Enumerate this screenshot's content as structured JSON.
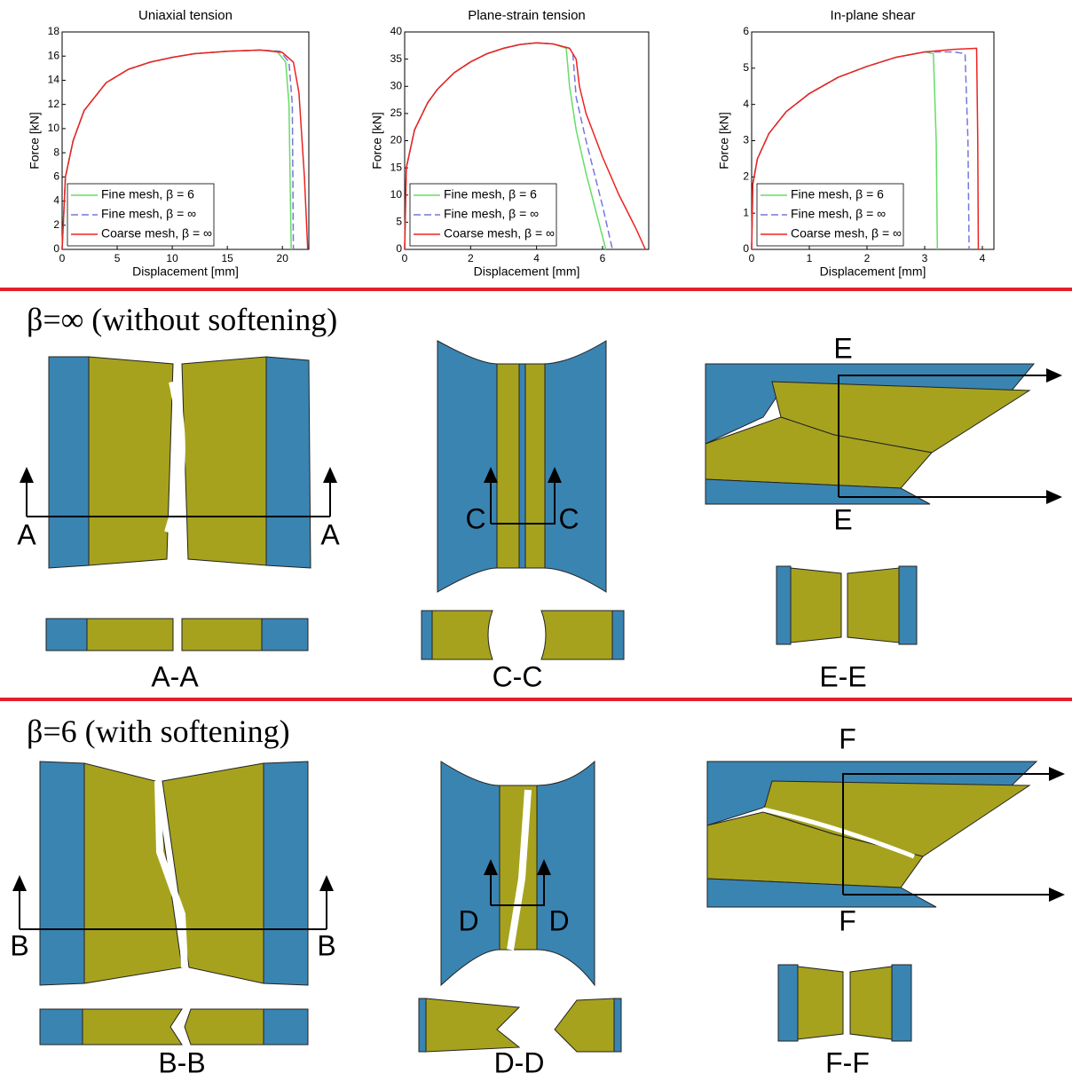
{
  "chart_data": [
    {
      "type": "line",
      "title": "Uniaxial tension",
      "xlabel": "Displacement [mm]",
      "ylabel": "Force [kN]",
      "xlim": [
        0,
        22.4
      ],
      "xticks": [
        0,
        5,
        10,
        15,
        20
      ],
      "ylim": [
        0,
        18
      ],
      "yticks": [
        0,
        2,
        4,
        6,
        8,
        10,
        12,
        14,
        16,
        18
      ],
      "legend": "lower left",
      "series": [
        {
          "name": "Fine mesh, β = 6",
          "color": "#66dd66",
          "line_style": "solid",
          "x": [
            0,
            0.3,
            1,
            2,
            4,
            6,
            8,
            10,
            12,
            15,
            18,
            19.5,
            20.3,
            20.6,
            20.8
          ],
          "values": [
            0,
            6,
            9,
            11.5,
            13.8,
            14.9,
            15.5,
            15.9,
            16.2,
            16.4,
            16.5,
            16.4,
            15.5,
            12,
            0
          ]
        },
        {
          "name": "Fine mesh, β = ∞",
          "color": "#7777dd",
          "line_style": "dashed",
          "x": [
            0,
            0.3,
            1,
            2,
            4,
            6,
            8,
            10,
            12,
            15,
            18,
            19.8,
            20.6,
            20.9,
            21.0
          ],
          "values": [
            0,
            6,
            9,
            11.5,
            13.8,
            14.9,
            15.5,
            15.9,
            16.2,
            16.4,
            16.5,
            16.4,
            15.5,
            12,
            0
          ]
        },
        {
          "name": "Coarse mesh, β = ∞",
          "color": "#ee2222",
          "line_style": "solid",
          "x": [
            0,
            0.3,
            1,
            2,
            4,
            6,
            8,
            10,
            12,
            15,
            18,
            20,
            21,
            21.5,
            22,
            22.3
          ],
          "values": [
            0,
            6,
            9,
            11.5,
            13.8,
            14.9,
            15.5,
            15.9,
            16.2,
            16.4,
            16.5,
            16.3,
            15.5,
            13,
            6,
            0
          ]
        }
      ]
    },
    {
      "type": "line",
      "title": "Plane-strain tension",
      "xlabel": "Displacement [mm]",
      "ylabel": "Force [kN]",
      "xlim": [
        0,
        7.4
      ],
      "xticks": [
        0,
        2,
        4,
        6
      ],
      "ylim": [
        0,
        40
      ],
      "yticks": [
        0,
        5,
        10,
        15,
        20,
        25,
        30,
        35,
        40
      ],
      "legend": "lower left",
      "series": [
        {
          "name": "Fine mesh, β = 6",
          "color": "#66dd66",
          "line_style": "solid",
          "x": [
            0,
            0.05,
            0.3,
            0.7,
            1,
            1.5,
            2,
            2.5,
            3,
            3.5,
            4,
            4.5,
            4.9,
            5.0,
            5.2,
            5.5,
            5.8,
            6.1
          ],
          "values": [
            0,
            15,
            22,
            27,
            29.5,
            32.5,
            34.5,
            36,
            37,
            37.7,
            38,
            37.8,
            37,
            30,
            22,
            14,
            7,
            0
          ]
        },
        {
          "name": "Fine mesh, β = ∞",
          "color": "#7777dd",
          "line_style": "dashed",
          "x": [
            0,
            0.05,
            0.3,
            0.7,
            1,
            1.5,
            2,
            2.5,
            3,
            3.5,
            4,
            4.5,
            5.0,
            5.1,
            5.2,
            5.5,
            6,
            6.3
          ],
          "values": [
            0,
            15,
            22,
            27,
            29.5,
            32.5,
            34.5,
            36,
            37,
            37.7,
            38,
            37.8,
            37,
            36,
            28,
            20,
            8,
            0
          ]
        },
        {
          "name": "Coarse mesh, β = ∞",
          "color": "#ee2222",
          "line_style": "solid",
          "x": [
            0,
            0.05,
            0.3,
            0.7,
            1,
            1.5,
            2,
            2.5,
            3,
            3.5,
            4,
            4.5,
            5,
            5.2,
            5.3,
            5.5,
            6,
            6.5,
            7,
            7.3
          ],
          "values": [
            0,
            15,
            22,
            27,
            29.5,
            32.5,
            34.5,
            36,
            37,
            37.7,
            38,
            37.8,
            37,
            35,
            30,
            25,
            17,
            10,
            4,
            0
          ]
        }
      ]
    },
    {
      "type": "line",
      "title": "In-plane shear",
      "xlabel": "Displacement [mm]",
      "ylabel": "Force [kN]",
      "xlim": [
        0,
        4.2
      ],
      "xticks": [
        0,
        1,
        2,
        3,
        4
      ],
      "ylim": [
        0,
        6
      ],
      "yticks": [
        0,
        1,
        2,
        3,
        4,
        5,
        6
      ],
      "legend": "lower left",
      "series": [
        {
          "name": "Fine mesh, β = 6",
          "color": "#66dd66",
          "line_style": "solid",
          "x": [
            0,
            0.02,
            0.1,
            0.3,
            0.6,
            1,
            1.5,
            2,
            2.5,
            3,
            3.15,
            3.2,
            3.22
          ],
          "values": [
            0,
            1.8,
            2.5,
            3.2,
            3.8,
            4.3,
            4.75,
            5.05,
            5.3,
            5.45,
            5.4,
            3,
            0
          ]
        },
        {
          "name": "Fine mesh, β = ∞",
          "color": "#7777dd",
          "line_style": "dashed",
          "x": [
            0,
            0.02,
            0.1,
            0.3,
            0.6,
            1,
            1.5,
            2,
            2.5,
            3,
            3.5,
            3.7,
            3.75,
            3.77
          ],
          "values": [
            0,
            1.8,
            2.5,
            3.2,
            3.8,
            4.3,
            4.75,
            5.05,
            5.3,
            5.45,
            5.45,
            5.4,
            3,
            0
          ]
        },
        {
          "name": "Coarse mesh, β = ∞",
          "color": "#ee2222",
          "line_style": "solid",
          "x": [
            0,
            0.02,
            0.1,
            0.3,
            0.6,
            1,
            1.5,
            2,
            2.5,
            3,
            3.5,
            3.9,
            3.92,
            3.93
          ],
          "values": [
            0,
            1.8,
            2.5,
            3.2,
            3.8,
            4.3,
            4.75,
            5.05,
            5.3,
            5.45,
            5.52,
            5.55,
            3,
            0
          ]
        }
      ]
    }
  ],
  "sections": [
    {
      "title": "β=∞ (without softening)",
      "views": [
        {
          "cut_label": "A",
          "section_label": "A-A"
        },
        {
          "cut_label": "C",
          "section_label": "C-C"
        },
        {
          "cut_label": "E",
          "section_label": "E-E"
        }
      ]
    },
    {
      "title": "β=6 (with softening)",
      "views": [
        {
          "cut_label": "B",
          "section_label": "B-B"
        },
        {
          "cut_label": "D",
          "section_label": "D-D"
        },
        {
          "cut_label": "F",
          "section_label": "F-F"
        }
      ]
    }
  ]
}
